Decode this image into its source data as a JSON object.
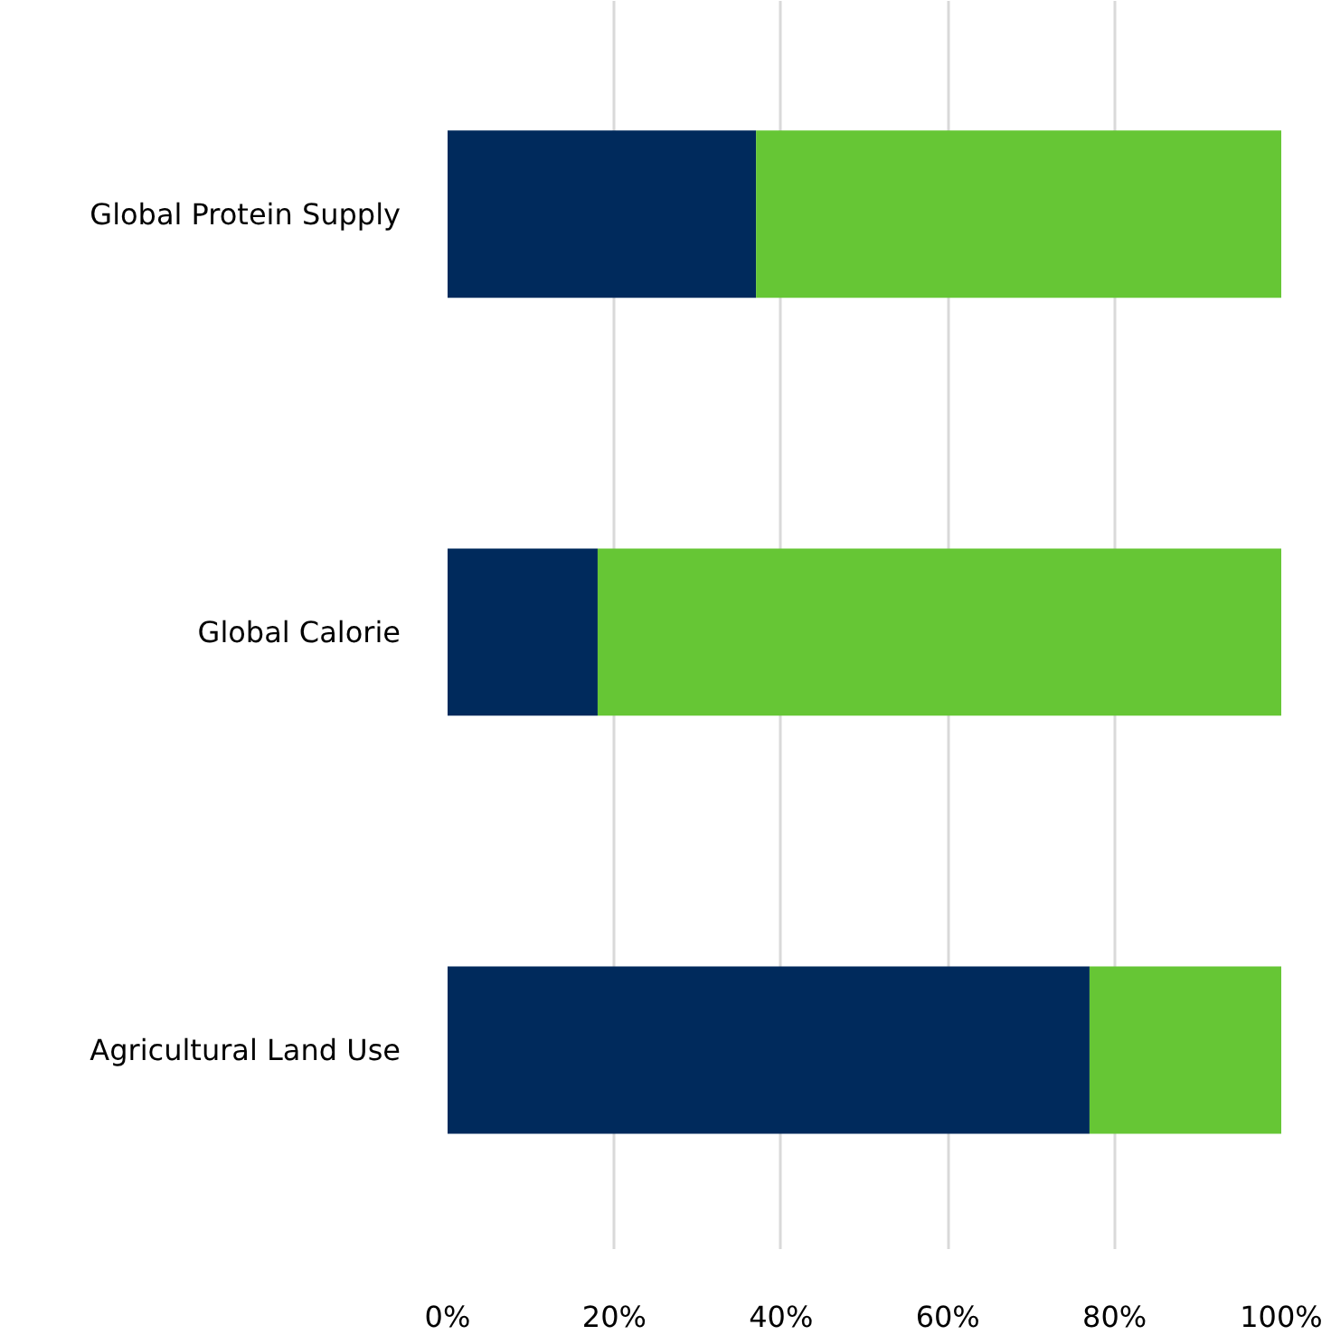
{
  "chart_data": {
    "type": "bar",
    "orientation": "horizontal",
    "stacked": true,
    "categories": [
      "Global Protein Supply",
      "Global Calorie",
      "Agricultural Land Use"
    ],
    "series": [
      {
        "color": "#002a5c",
        "values": [
          37,
          18,
          77
        ]
      },
      {
        "color": "#66c635",
        "values": [
          63,
          82,
          23
        ]
      }
    ],
    "xlim": [
      0,
      100
    ],
    "xticks": [
      {
        "value": 0,
        "label": "0%"
      },
      {
        "value": 20,
        "label": "20%"
      },
      {
        "value": 40,
        "label": "40%"
      },
      {
        "value": 60,
        "label": "60%"
      },
      {
        "value": 80,
        "label": "80%"
      },
      {
        "value": 100,
        "label": "100%"
      }
    ],
    "grid": "x"
  }
}
